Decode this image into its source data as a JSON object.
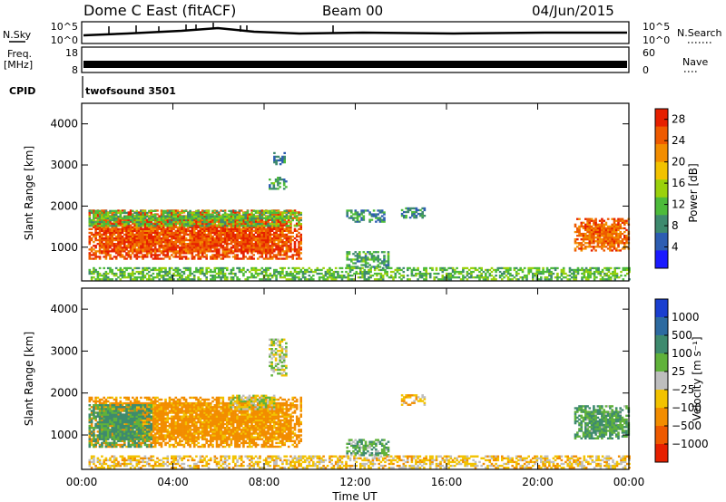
{
  "header": {
    "title": "Dome C East (fitACF)",
    "beam": "Beam 00",
    "date": "04/Jun/2015"
  },
  "top_panels": {
    "nsky_label": "N.Sky",
    "nsky_top_tick": "10^5",
    "nsky_bottom_tick": "10^0",
    "nsearch_label": "N.Search",
    "nsearch_top_tick": "10^5",
    "nsearch_bottom_tick": "10^0",
    "freq_label_1": "Freq.",
    "freq_label_2": "[MHz]",
    "freq_top_tick": "18",
    "freq_bottom_tick": "8",
    "nave_label": "Nave",
    "nave_top_tick": "60",
    "nave_bottom_tick": "0",
    "cpid_label": "CPID",
    "cpid_value": "twofsound 3501"
  },
  "colors": {
    "power": [
      "#1a1aff",
      "#2d5db2",
      "#3e8a6e",
      "#4dbb3a",
      "#9ad10c",
      "#f2c200",
      "#f28d00",
      "#ee5a00",
      "#e62000"
    ],
    "velocity": [
      "#1a3fd0",
      "#2d6aa0",
      "#3e8a6e",
      "#60b23a",
      "#bebebe",
      "#f2c200",
      "#f28d00",
      "#ee5a00",
      "#e62000"
    ]
  },
  "chart_data": [
    {
      "type": "heatmap",
      "name": "power",
      "ylabel": "Slant Range [km]",
      "xlabel": "",
      "x_ticks": [
        "00:00",
        "04:00",
        "08:00",
        "12:00",
        "16:00",
        "20:00",
        "00:00"
      ],
      "x_range_hours": [
        0,
        24
      ],
      "ylim": [
        180,
        4500
      ],
      "y_ticks": [
        1000,
        2000,
        3000,
        4000
      ],
      "colorbar_label": "Power [dB]",
      "colorbar_ticks": [
        "4",
        "8",
        "12",
        "16",
        "20",
        "24",
        "28"
      ],
      "colorbar_range": [
        0,
        30
      ],
      "regions": [
        {
          "t0": 0.3,
          "t1": 9.6,
          "r0": 700,
          "r1": 1900,
          "level": 26
        },
        {
          "t0": 0.3,
          "t1": 9.6,
          "r0": 1500,
          "r1": 1900,
          "level": 12
        },
        {
          "t0": 8.2,
          "t1": 9.0,
          "r0": 2400,
          "r1": 2700,
          "level": 10
        },
        {
          "t0": 8.4,
          "t1": 8.9,
          "r0": 3000,
          "r1": 3300,
          "level": 8
        },
        {
          "t0": 11.6,
          "t1": 13.3,
          "r0": 1600,
          "r1": 1900,
          "level": 8
        },
        {
          "t0": 11.6,
          "t1": 13.4,
          "r0": 500,
          "r1": 900,
          "level": 10
        },
        {
          "t0": 14.0,
          "t1": 15.0,
          "r0": 1700,
          "r1": 1950,
          "level": 8
        },
        {
          "t0": 21.6,
          "t1": 24.0,
          "r0": 900,
          "r1": 1700,
          "level": 24
        },
        {
          "t0": 0.3,
          "t1": 24.0,
          "r0": 200,
          "r1": 500,
          "level": 12
        }
      ]
    },
    {
      "type": "heatmap",
      "name": "velocity",
      "ylabel": "Slant Range [km]",
      "xlabel": "Time UT",
      "x_ticks": [
        "00:00",
        "04:00",
        "08:00",
        "12:00",
        "16:00",
        "20:00",
        "00:00"
      ],
      "x_range_hours": [
        0,
        24
      ],
      "ylim": [
        180,
        4500
      ],
      "y_ticks": [
        1000,
        2000,
        3000,
        4000
      ],
      "colorbar_label": "Velocity [m s⁻¹]",
      "colorbar_ticks": [
        "1000",
        "500",
        "100",
        "25",
        "−25",
        "−100",
        "−500",
        "−1000"
      ],
      "regions": [
        {
          "t0": 0.3,
          "t1": 9.6,
          "r0": 700,
          "r1": 1900,
          "level": -150
        },
        {
          "t0": 0.3,
          "t1": 3.0,
          "r0": 700,
          "r1": 1700,
          "level": 120
        },
        {
          "t0": 6.5,
          "t1": 8.4,
          "r0": 1600,
          "r1": 1950,
          "level": 0
        },
        {
          "t0": 8.2,
          "t1": 9.0,
          "r0": 2400,
          "r1": 3300,
          "level": 0
        },
        {
          "t0": 11.6,
          "t1": 13.4,
          "r0": 500,
          "r1": 900,
          "level": 80
        },
        {
          "t0": 14.0,
          "t1": 15.0,
          "r0": 1700,
          "r1": 1950,
          "level": -80
        },
        {
          "t0": 21.6,
          "t1": 24.0,
          "r0": 900,
          "r1": 1700,
          "level": 100
        },
        {
          "t0": 0.3,
          "t1": 24.0,
          "r0": 200,
          "r1": 500,
          "level": -60
        }
      ]
    }
  ]
}
